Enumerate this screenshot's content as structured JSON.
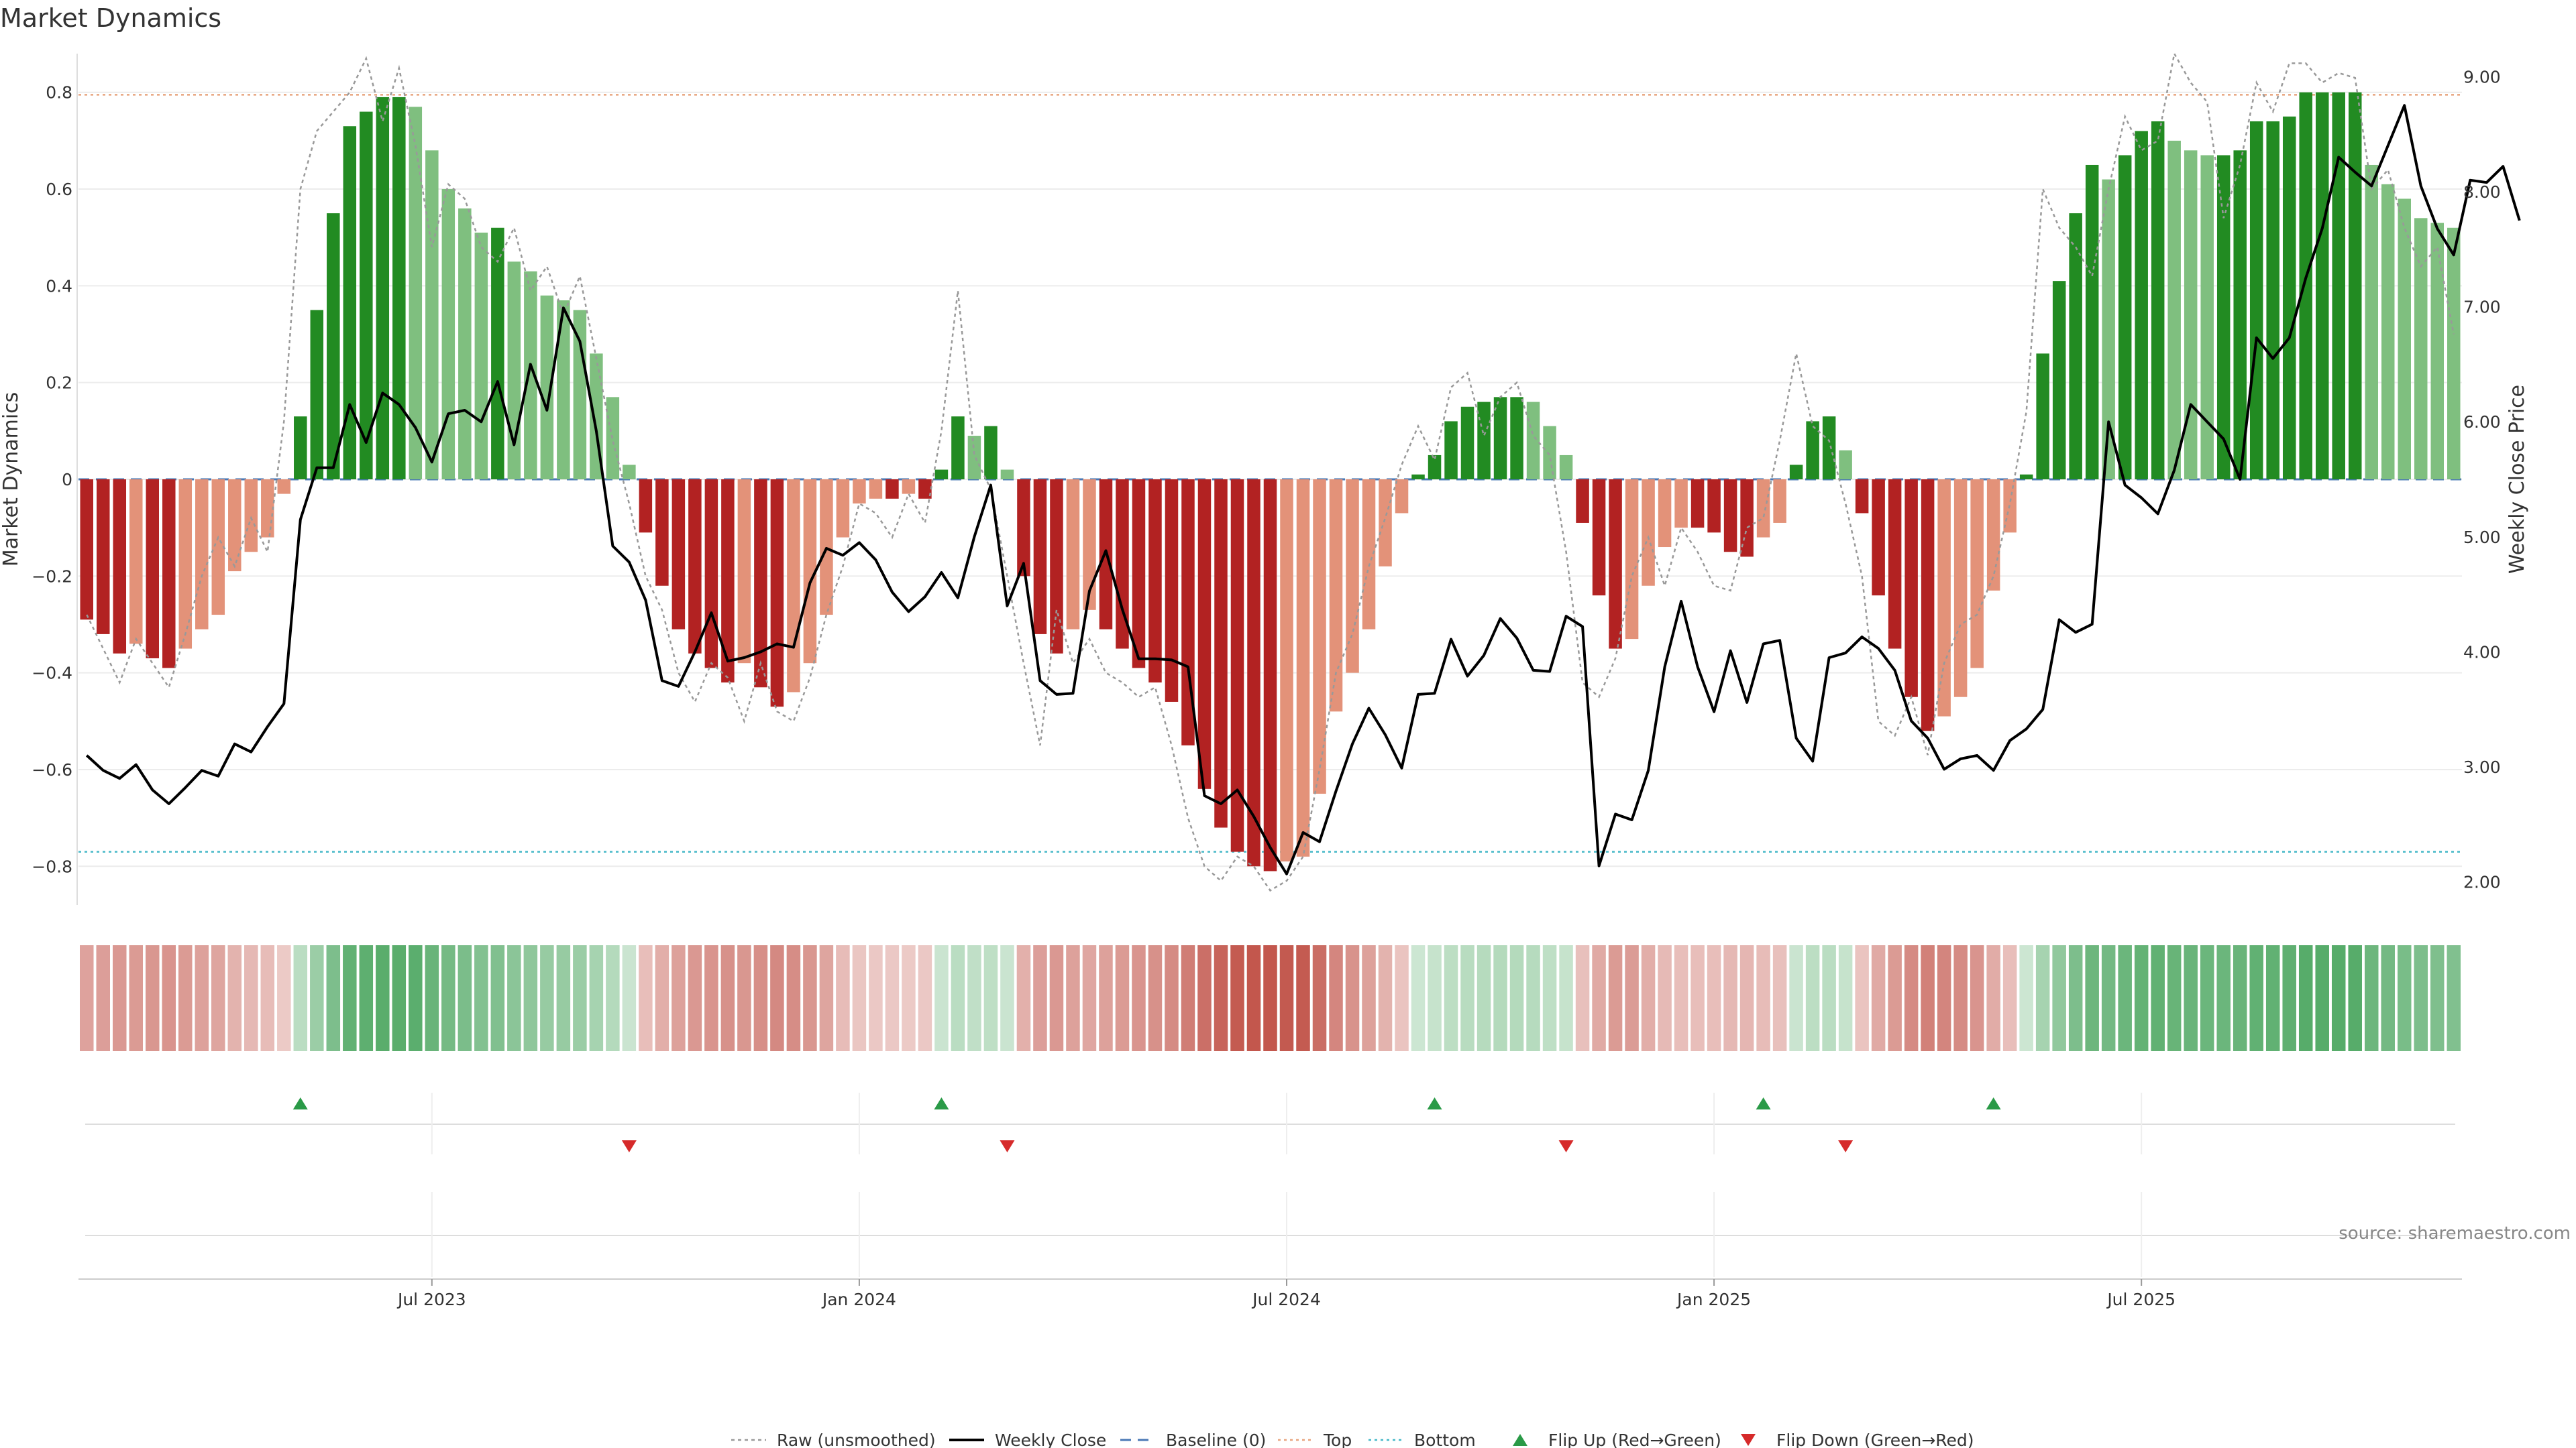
{
  "chart_data": {
    "type": "bar",
    "title": "Market Dynamics",
    "ylabel_left": "Market Dynamics",
    "ylabel_right": "Weekly Close Price",
    "source": "source: sharemaestro.com",
    "ylim_left": [
      -0.88,
      0.88
    ],
    "ylim_right": [
      1.8,
      9.2
    ],
    "top_level": 0.795,
    "bottom_level": -0.77,
    "left_ticks": [
      0.8,
      0.6,
      0.4,
      0.2,
      0,
      -0.2,
      -0.4,
      -0.6,
      -0.8
    ],
    "left_tick_labels": [
      "0.8",
      "0.6",
      "0.4",
      "0.2",
      "0",
      "−0.2",
      "−0.4",
      "−0.6",
      "−0.8"
    ],
    "right_ticks": [
      9,
      8,
      7,
      6,
      5,
      4,
      3,
      2
    ],
    "right_tick_labels": [
      "9.00",
      "8.00",
      "7.00",
      "6.00",
      "5.00",
      "4.00",
      "3.00",
      "2.00"
    ],
    "x_ticks": [
      {
        "index": 21,
        "label": "Jul 2023"
      },
      {
        "index": 47,
        "label": "Jan 2024"
      },
      {
        "index": 73,
        "label": "Jul 2024"
      },
      {
        "index": 99,
        "label": "Jan 2025"
      },
      {
        "index": 125,
        "label": "Jul 2025"
      }
    ],
    "market_dynamics": [
      -0.29,
      -0.32,
      -0.36,
      -0.34,
      -0.37,
      -0.39,
      -0.35,
      -0.31,
      -0.28,
      -0.19,
      -0.15,
      -0.12,
      -0.03,
      0.13,
      0.35,
      0.55,
      0.73,
      0.76,
      0.79,
      0.79,
      0.77,
      0.68,
      0.6,
      0.56,
      0.51,
      0.52,
      0.45,
      0.43,
      0.38,
      0.37,
      0.35,
      0.26,
      0.17,
      0.03,
      -0.11,
      -0.22,
      -0.31,
      -0.36,
      -0.39,
      -0.42,
      -0.38,
      -0.43,
      -0.47,
      -0.44,
      -0.38,
      -0.28,
      -0.12,
      -0.05,
      -0.04,
      -0.04,
      -0.03,
      -0.04,
      0.02,
      0.13,
      0.09,
      0.11,
      0.02,
      -0.2,
      -0.32,
      -0.36,
      -0.31,
      -0.27,
      -0.31,
      -0.35,
      -0.39,
      -0.42,
      -0.46,
      -0.55,
      -0.64,
      -0.72,
      -0.77,
      -0.8,
      -0.81,
      -0.79,
      -0.78,
      -0.65,
      -0.48,
      -0.4,
      -0.31,
      -0.18,
      -0.07,
      0.01,
      0.05,
      0.12,
      0.15,
      0.16,
      0.17,
      0.17,
      0.16,
      0.11,
      0.05,
      -0.09,
      -0.24,
      -0.35,
      -0.33,
      -0.22,
      -0.14,
      -0.1,
      -0.1,
      -0.11,
      -0.15,
      -0.16,
      -0.12,
      -0.09,
      0.03,
      0.12,
      0.13,
      0.06,
      -0.07,
      -0.24,
      -0.35,
      -0.45,
      -0.52,
      -0.49,
      -0.45,
      -0.39,
      -0.23,
      -0.11,
      0.01,
      0.26,
      0.41,
      0.55,
      0.65,
      0.62,
      0.67,
      0.72,
      0.74,
      0.7,
      0.68,
      0.67,
      0.67,
      0.68,
      0.74,
      0.74,
      0.75,
      0.8,
      0.8,
      0.8,
      0.8,
      0.65,
      0.61,
      0.58,
      0.54,
      0.53,
      0.52
    ],
    "raw_unsmoothed": [
      -0.28,
      -0.35,
      -0.42,
      -0.33,
      -0.38,
      -0.43,
      -0.32,
      -0.2,
      -0.12,
      -0.18,
      -0.08,
      -0.15,
      0.12,
      0.6,
      0.72,
      0.76,
      0.8,
      0.87,
      0.74,
      0.85,
      0.69,
      0.48,
      0.61,
      0.58,
      0.48,
      0.45,
      0.52,
      0.39,
      0.44,
      0.34,
      0.42,
      0.25,
      0.08,
      -0.05,
      -0.2,
      -0.27,
      -0.4,
      -0.46,
      -0.38,
      -0.41,
      -0.5,
      -0.38,
      -0.48,
      -0.5,
      -0.41,
      -0.28,
      -0.18,
      -0.05,
      -0.07,
      -0.12,
      -0.03,
      -0.09,
      0.1,
      0.39,
      0.05,
      -0.02,
      -0.2,
      -0.38,
      -0.55,
      -0.27,
      -0.38,
      -0.33,
      -0.4,
      -0.42,
      -0.45,
      -0.43,
      -0.55,
      -0.7,
      -0.8,
      -0.83,
      -0.78,
      -0.8,
      -0.85,
      -0.83,
      -0.78,
      -0.6,
      -0.4,
      -0.32,
      -0.18,
      -0.08,
      0.03,
      0.11,
      0.04,
      0.19,
      0.22,
      0.09,
      0.17,
      0.2,
      0.09,
      0.05,
      -0.15,
      -0.42,
      -0.45,
      -0.37,
      -0.2,
      -0.12,
      -0.22,
      -0.1,
      -0.15,
      -0.22,
      -0.23,
      -0.1,
      -0.08,
      0.08,
      0.26,
      0.11,
      0.08,
      -0.05,
      -0.2,
      -0.5,
      -0.53,
      -0.45,
      -0.57,
      -0.38,
      -0.3,
      -0.28,
      -0.2,
      -0.05,
      0.14,
      0.6,
      0.52,
      0.48,
      0.42,
      0.6,
      0.75,
      0.68,
      0.7,
      0.88,
      0.82,
      0.78,
      0.54,
      0.65,
      0.82,
      0.76,
      0.86,
      0.86,
      0.82,
      0.84,
      0.83,
      0.6,
      0.64,
      0.52,
      0.44,
      0.48,
      0.3
    ],
    "weekly_close": [
      3.1,
      2.97,
      2.9,
      3.02,
      2.8,
      2.68,
      2.82,
      2.97,
      2.92,
      3.2,
      3.13,
      3.35,
      3.55,
      5.15,
      5.6,
      5.6,
      6.15,
      5.82,
      6.25,
      6.15,
      5.95,
      5.65,
      6.07,
      6.1,
      6.0,
      6.35,
      5.8,
      6.5,
      6.1,
      6.99,
      6.7,
      5.92,
      4.92,
      4.78,
      4.45,
      3.75,
      3.7,
      4.0,
      4.34,
      3.92,
      3.95,
      4.0,
      4.07,
      4.04,
      4.6,
      4.9,
      4.84,
      4.95,
      4.8,
      4.52,
      4.35,
      4.48,
      4.69,
      4.47,
      5.0,
      5.45,
      4.4,
      4.77,
      3.75,
      3.63,
      3.64,
      4.53,
      4.88,
      4.37,
      3.94,
      3.94,
      3.93,
      3.87,
      2.75,
      2.68,
      2.8,
      2.57,
      2.3,
      2.07,
      2.43,
      2.35,
      2.79,
      3.2,
      3.51,
      3.28,
      2.99,
      3.63,
      3.64,
      4.11,
      3.79,
      3.97,
      4.29,
      4.12,
      3.84,
      3.83,
      4.31,
      4.22,
      2.14,
      2.59,
      2.54,
      2.97,
      3.87,
      4.44,
      3.87,
      3.48,
      4.01,
      3.56,
      4.07,
      4.1,
      3.25,
      3.05,
      3.95,
      3.99,
      4.13,
      4.03,
      3.84,
      3.4,
      3.25,
      2.98,
      3.07,
      3.1,
      2.97,
      3.23,
      3.33,
      3.5,
      4.28,
      4.17,
      4.24,
      6.0,
      5.45,
      5.34,
      5.2,
      5.58,
      6.15,
      6.0,
      5.85,
      5.5,
      6.73,
      6.55,
      6.73,
      7.25,
      7.68,
      8.3,
      8.17,
      8.05,
      8.4,
      8.75,
      8.05,
      7.68,
      7.45,
      8.1,
      8.08,
      8.22,
      7.75
    ],
    "baseline": 0,
    "flip_up_indices": [
      13,
      52,
      82,
      102,
      116
    ],
    "flip_down_indices": [
      33,
      56,
      90,
      107
    ],
    "legend": [
      {
        "label": "Raw (unsmoothed)",
        "style": "gray-dotted"
      },
      {
        "label": "Weekly Close",
        "style": "black-line"
      },
      {
        "label": "Baseline (0)",
        "style": "blue-dashed"
      },
      {
        "label": "Top",
        "style": "orange-dotted"
      },
      {
        "label": "Bottom",
        "style": "cyan-dotted"
      },
      {
        "label": "Flip Up (Red→Green)",
        "style": "green-triangle-up"
      },
      {
        "label": "Flip Down (Green→Red)",
        "style": "red-triangle-down"
      }
    ],
    "colors": {
      "strong_green": "#228b22",
      "light_green": "#7fbf7f",
      "strong_red": "#b22222",
      "light_red": "#e39279",
      "close_line": "#000000",
      "raw_line": "#999999",
      "baseline": "#4a78b5",
      "top": "#e8a57f",
      "bottom": "#45b8c8",
      "flip_up": "#2a9a47",
      "flip_down": "#d62a2a"
    }
  }
}
